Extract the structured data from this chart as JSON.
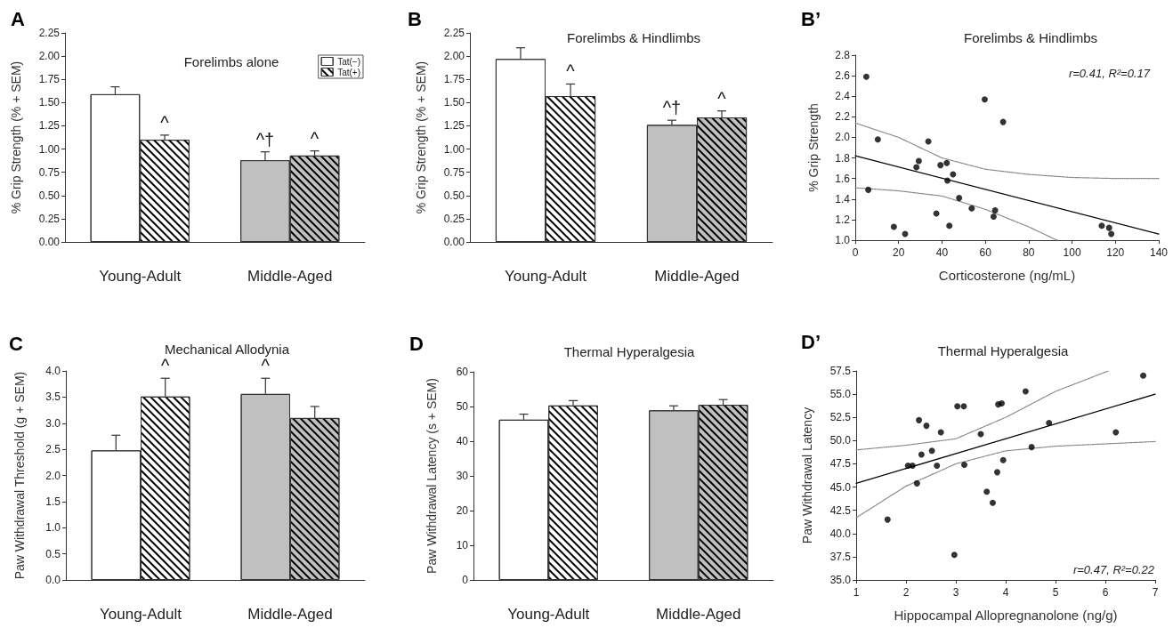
{
  "chart_data": [
    {
      "type": "bar",
      "title": "Forelimbs alone",
      "ylabel": "% Grip Strength (% + SEM)",
      "categories": [
        "Young-Adult",
        "Middle-Aged"
      ],
      "series": [
        {
          "name": "Tat(−)",
          "colors": [
            "#ffffff",
            "#c0c0c0"
          ],
          "values": [
            1.59,
            0.88
          ],
          "errors": [
            0.08,
            0.09
          ]
        },
        {
          "name": "Tat(+)",
          "colors": [
            "#ffffff",
            "#c0c0c0"
          ],
          "values": [
            1.1,
            0.93
          ],
          "errors": [
            0.05,
            0.05
          ]
        }
      ],
      "ylim": [
        0,
        2.25
      ],
      "yticks": [
        {
          "value": 0,
          "label": "0.00"
        },
        0.25,
        {
          "value": 0.5,
          "label": "0.50"
        },
        {
          "value": 0.75,
          "label": "0.75"
        },
        {
          "value": 1,
          "label": "1.00"
        },
        1.25,
        {
          "value": 1.5,
          "label": "1.50"
        },
        1.75,
        {
          "value": 2,
          "label": "2.00"
        },
        2.25
      ],
      "legend": "top right",
      "annotations": [
        "A",
        {
          "text": "^",
          "x": "Young-Adult",
          "y": 1.1
        },
        {
          "text": "^†",
          "x": "Middle-Aged",
          "y": 0.88
        },
        {
          "text": "^",
          "x": "Middle-Aged",
          "y": 0.93
        }
      ]
    },
    {
      "type": "bar",
      "title": "Forelimbs & Hindlimbs",
      "ylabel": "% Grip Strength (% + SEM)",
      "categories": [
        "Young-Adult",
        "Middle-Aged"
      ],
      "series": [
        {
          "colors": [
            "#ffffff",
            "#c0c0c0"
          ],
          "values": [
            1.97,
            1.26
          ],
          "errors": [
            0.12,
            0.05
          ]
        },
        {
          "colors": [
            "#ffffff",
            "#c0c0c0"
          ],
          "values": [
            1.57,
            1.34
          ],
          "errors": [
            0.13,
            0.07
          ]
        }
      ],
      "ylim": [
        0,
        2.25
      ],
      "yticks": [
        {
          "value": 0,
          "label": "0.00"
        },
        0.25,
        {
          "value": 0.5,
          "label": "0.50"
        },
        {
          "value": 0.75,
          "label": "0.75"
        },
        {
          "value": 1,
          "label": "1.00"
        },
        1.25,
        {
          "value": 1.5,
          "label": "1.50"
        },
        1.75,
        {
          "value": 2,
          "label": "2.00"
        },
        2.25
      ],
      "annotations": [
        "B",
        {
          "text": "^",
          "x": "Young-Adult",
          "y": 1.57
        },
        {
          "text": "^†",
          "x": "Middle-Aged",
          "y": 1.26
        },
        {
          "text": "^",
          "x": "Middle-Aged",
          "y": 1.34
        }
      ]
    },
    {
      "type": "scatter",
      "title": "Forelimbs & Hindlimbs",
      "xlabel": "Corticosterone (ng/mL)",
      "ylabel": "% Grip Strength",
      "series": [
        {
          "marker": "circle",
          "color": "#000000",
          "x": [
            5.1,
            10.4,
            6.0,
            17.8,
            23.0,
            28.2,
            29.3,
            33.7,
            37.4,
            39.3,
            42.2,
            42.5,
            43.4,
            45.1,
            47.9,
            53.7,
            59.7,
            63.8,
            64.5,
            68.2,
            113.7,
            117.1,
            118.1
          ],
          "values": [
            2.59,
            1.98,
            1.49,
            1.13,
            1.06,
            1.71,
            1.77,
            1.96,
            1.26,
            1.73,
            1.75,
            1.58,
            1.14,
            1.64,
            1.41,
            1.31,
            2.37,
            1.23,
            1.29,
            2.15,
            1.14,
            1.12,
            1.06
          ]
        },
        {
          "type": "line",
          "marker": "none",
          "color": "#000000",
          "line_style": "solid",
          "x": [
            0,
            140
          ],
          "values": [
            1.82,
            1.06
          ]
        },
        {
          "type": "line",
          "marker": "none",
          "color": "#808080",
          "line_style": "dotted",
          "x": [
            0,
            20,
            40,
            60,
            80,
            100,
            120,
            140
          ],
          "values": [
            2.14,
            2.0,
            1.8,
            1.69,
            1.64,
            1.61,
            1.6,
            1.6
          ]
        },
        {
          "type": "line",
          "marker": "none",
          "color": "#808080",
          "line_style": "dotted",
          "x": [
            0,
            20,
            40,
            60,
            80,
            93
          ],
          "values": [
            1.51,
            1.48,
            1.43,
            1.3,
            1.13,
            1.0
          ]
        }
      ],
      "xlim": [
        0,
        140
      ],
      "xticks": [
        0,
        20,
        40,
        60,
        80,
        100,
        120,
        140
      ],
      "ylim": [
        1,
        2.8
      ],
      "yticks": [
        {
          "value": 1,
          "label": "1.0"
        },
        1.2,
        1.4,
        1.6,
        1.8,
        {
          "value": 2,
          "label": "2.0"
        },
        2.2,
        2.4,
        2.6,
        2.8
      ],
      "annotations": [
        "B’",
        "r=0.41, R²=0.17"
      ]
    },
    {
      "type": "bar",
      "title": "Mechanical Allodynia",
      "ylabel": "Paw Withdrawal Threshold (g + SEM)",
      "categories": [
        "Young-Adult",
        "Middle-Aged"
      ],
      "series": [
        {
          "colors": [
            "#ffffff",
            "#c0c0c0"
          ],
          "values": [
            2.48,
            3.56
          ],
          "errors": [
            0.29,
            0.3
          ]
        },
        {
          "colors": [
            "#ffffff",
            "#c0c0c0"
          ],
          "values": [
            3.51,
            3.1
          ],
          "errors": [
            0.35,
            0.22
          ]
        }
      ],
      "ylim": [
        0,
        4
      ],
      "yticks": [
        {
          "value": 0,
          "label": "0.0"
        },
        0.5,
        {
          "value": 1,
          "label": "1.0"
        },
        1.5,
        {
          "value": 2,
          "label": "2.0"
        },
        2.5,
        {
          "value": 3,
          "label": "3.0"
        },
        3.5,
        {
          "value": 4,
          "label": "4.0"
        }
      ],
      "annotations": [
        "C",
        {
          "text": "^",
          "x": "Young-Adult",
          "y": 3.51
        },
        {
          "text": "^",
          "x": "Middle-Aged",
          "y": 3.56
        }
      ]
    },
    {
      "type": "bar",
      "title": "Thermal Hyperalgesia",
      "ylabel": "Paw Withdrawal Latency (s + SEM)",
      "categories": [
        "Young-Adult",
        "Middle-Aged"
      ],
      "series": [
        {
          "colors": [
            "#ffffff",
            "#c0c0c0"
          ],
          "values": [
            46.2,
            48.9
          ],
          "errors": [
            1.6,
            1.3
          ]
        },
        {
          "colors": [
            "#ffffff",
            "#c0c0c0"
          ],
          "values": [
            50.3,
            50.5
          ],
          "errors": [
            1.4,
            1.5
          ]
        }
      ],
      "ylim": [
        0,
        60
      ],
      "yticks": [
        0,
        10,
        20,
        30,
        40,
        50,
        60
      ],
      "annotations": [
        "D"
      ]
    },
    {
      "type": "scatter",
      "title": "Thermal Hyperalgesia",
      "xlabel": "Hippocampal Allopregnanolone (ng/g)",
      "ylabel": "Paw Withdrawal Latency",
      "series": [
        {
          "marker": "circle",
          "color": "#000000",
          "x": [
            1.63,
            2.04,
            2.13,
            2.22,
            2.26,
            2.31,
            2.41,
            2.52,
            2.62,
            2.7,
            2.97,
            3.03,
            3.16,
            3.17,
            3.5,
            3.62,
            3.74,
            3.83,
            3.85,
            3.92,
            3.95,
            4.4,
            4.52,
            4.87,
            6.21,
            6.76
          ],
          "values": [
            41.5,
            47.3,
            47.3,
            45.4,
            52.2,
            48.5,
            51.6,
            48.9,
            47.3,
            50.9,
            37.7,
            53.7,
            53.7,
            47.4,
            50.7,
            44.5,
            43.3,
            46.6,
            53.9,
            54.0,
            47.9,
            55.3,
            49.3,
            51.9,
            50.9,
            57.0
          ]
        },
        {
          "type": "line",
          "marker": "none",
          "color": "#000000",
          "line_style": "solid",
          "x": [
            1,
            7
          ],
          "values": [
            45.4,
            55.0
          ]
        },
        {
          "type": "line",
          "marker": "none",
          "color": "#808080",
          "line_style": "dotted",
          "x": [
            1,
            2,
            3,
            4,
            5,
            6.06
          ],
          "values": [
            49.0,
            49.5,
            50.2,
            52.5,
            55.3,
            57.5
          ]
        },
        {
          "type": "line",
          "marker": "none",
          "color": "#808080",
          "line_style": "dotted",
          "x": [
            1,
            2,
            3,
            4,
            5,
            7
          ],
          "values": [
            41.7,
            45.1,
            47.5,
            48.9,
            49.4,
            49.9
          ]
        }
      ],
      "xlim": [
        1,
        7
      ],
      "xticks": [
        1,
        2,
        3,
        4,
        5,
        6,
        7
      ],
      "ylim": [
        35,
        57.5
      ],
      "yticks": [
        {
          "value": 35,
          "label": "35.0"
        },
        37.5,
        {
          "value": 40,
          "label": "40.0"
        },
        42.5,
        {
          "value": 45,
          "label": "45.0"
        },
        47.5,
        {
          "value": 50,
          "label": "50.0"
        },
        52.5,
        {
          "value": 55,
          "label": "55.0"
        },
        57.5
      ],
      "annotations": [
        "D’",
        "r=0.47, R²=0.22"
      ]
    }
  ]
}
